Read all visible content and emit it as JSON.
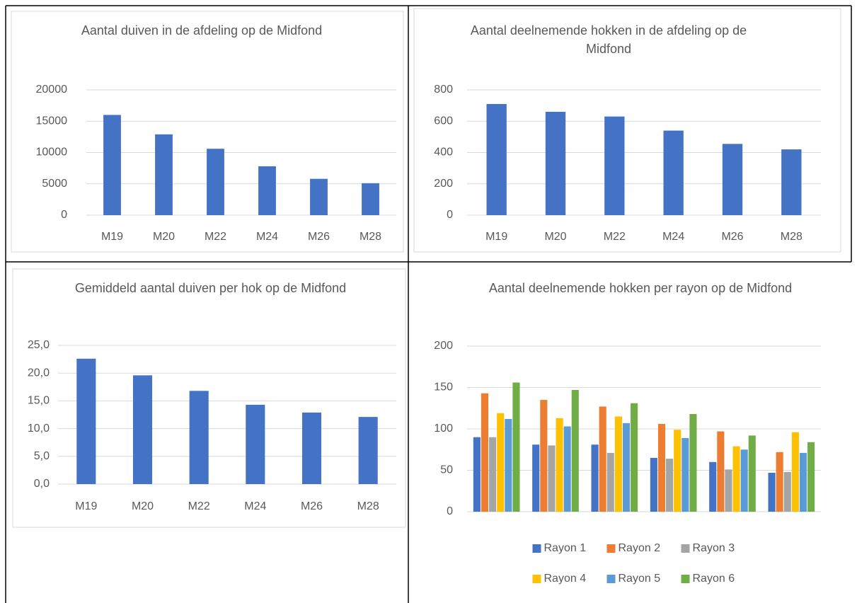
{
  "chart_data": [
    {
      "type": "bar",
      "title": "Aantal duiven in de afdeling op de Midfond",
      "categories": [
        "M19",
        "M20",
        "M22",
        "M24",
        "M26",
        "M28"
      ],
      "values": [
        16000,
        12900,
        10600,
        7800,
        5800,
        5100
      ],
      "color": "#4472c4",
      "ylim": [
        0,
        20000
      ],
      "yticks": [
        0,
        5000,
        10000,
        15000,
        20000
      ],
      "grid": true
    },
    {
      "type": "bar",
      "title": "Aantal deelnemende hokken in de afdeling op de Midfond",
      "categories": [
        "M19",
        "M20",
        "M22",
        "M24",
        "M26",
        "M28"
      ],
      "values": [
        710,
        660,
        630,
        540,
        455,
        420
      ],
      "color": "#4472c4",
      "ylim": [
        0,
        800
      ],
      "yticks": [
        0,
        200,
        400,
        600,
        800
      ],
      "grid": true
    },
    {
      "type": "bar",
      "title": "Gemiddeld aantal duiven per hok op de Midfond",
      "categories": [
        "M19",
        "M20",
        "M22",
        "M24",
        "M26",
        "M28"
      ],
      "values": [
        22.6,
        19.6,
        16.8,
        14.3,
        12.9,
        12.1
      ],
      "color": "#4472c4",
      "ylim": [
        0,
        25
      ],
      "yticks": [
        {
          "value": 0,
          "label": "0,0"
        },
        {
          "value": 5,
          "label": "5,0"
        },
        {
          "value": 10,
          "label": "10,0"
        },
        {
          "value": 15,
          "label": "15,0"
        },
        {
          "value": 20,
          "label": "20,0"
        },
        {
          "value": 25,
          "label": "25,0"
        }
      ],
      "grid": true
    },
    {
      "type": "bar",
      "title": "Aantal deelnemende hokken per rayon op de Midfond",
      "categories": [
        null,
        null,
        null,
        null,
        null,
        null
      ],
      "series": [
        {
          "name": "Rayon 1",
          "color": "#4472c4",
          "values": [
            90,
            81,
            81,
            65,
            60,
            47
          ]
        },
        {
          "name": "Rayon 2",
          "color": "#ed7d31",
          "values": [
            143,
            135,
            127,
            106,
            97,
            72
          ]
        },
        {
          "name": "Rayon 3",
          "color": "#a5a5a5",
          "values": [
            90,
            80,
            71,
            64,
            51,
            48
          ]
        },
        {
          "name": "Rayon 4",
          "color": "#ffc000",
          "values": [
            119,
            113,
            115,
            99,
            79,
            96
          ]
        },
        {
          "name": "Rayon 5",
          "color": "#5b9bd5",
          "values": [
            112,
            103,
            107,
            89,
            75,
            71
          ]
        },
        {
          "name": "Rayon 6",
          "color": "#70ad47",
          "values": [
            156,
            147,
            131,
            118,
            92,
            84
          ]
        }
      ],
      "ylim": [
        0,
        200
      ],
      "yticks": [
        0,
        50,
        100,
        150,
        200
      ],
      "grid": true,
      "legend": "bottom"
    }
  ]
}
